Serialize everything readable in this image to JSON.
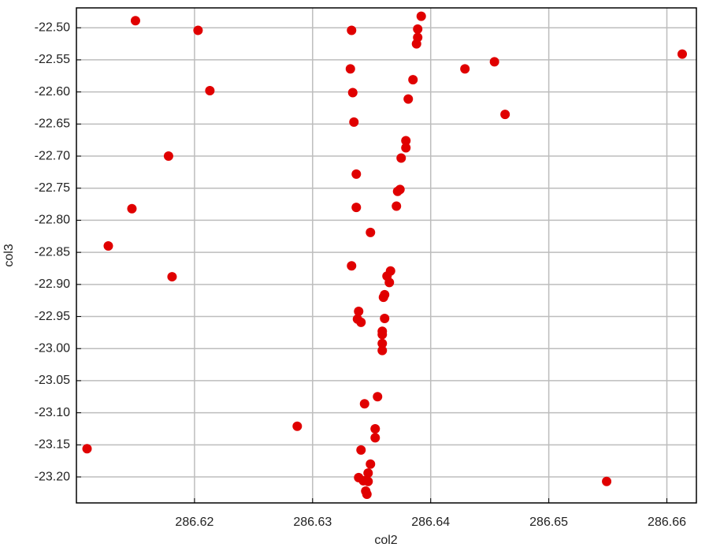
{
  "chart_data": {
    "type": "scatter",
    "x_label": "col2",
    "y_label": "col3",
    "grid": true,
    "series": [
      {
        "color": "#e00000",
        "x": [
          286.615,
          286.6203,
          286.6392,
          286.6389,
          286.6389,
          286.6388,
          286.6333,
          286.6613,
          286.6454,
          286.6429,
          286.6332,
          286.6385,
          286.6213,
          286.6334,
          286.6381,
          286.6463,
          286.6335,
          286.6379,
          286.6379,
          286.6178,
          286.6375,
          286.6337,
          286.6374,
          286.6372,
          286.6147,
          286.6337,
          286.6371,
          286.6349,
          286.6127,
          286.6333,
          286.6366,
          286.6363,
          286.6365,
          286.6181,
          286.6361,
          286.636,
          286.6339,
          286.6338,
          286.6341,
          286.6361,
          286.6359,
          286.6359,
          286.6359,
          286.6359,
          286.6355,
          286.6344,
          286.6287,
          286.6353,
          286.6353,
          286.6109,
          286.6341,
          286.6349,
          286.6347,
          286.6339,
          286.6343,
          286.6347,
          286.6345,
          286.6346,
          286.6549
        ],
        "values": [
          -22.489,
          -22.504,
          -22.482,
          -22.502,
          -22.515,
          -22.525,
          -22.504,
          -22.541,
          -22.553,
          -22.564,
          -22.564,
          -22.581,
          -22.598,
          -22.601,
          -22.611,
          -22.635,
          -22.647,
          -22.676,
          -22.687,
          -22.7,
          -22.703,
          -22.728,
          -22.752,
          -22.755,
          -22.782,
          -22.78,
          -22.778,
          -22.819,
          -22.84,
          -22.871,
          -22.879,
          -22.887,
          -22.897,
          -22.888,
          -22.916,
          -22.92,
          -22.942,
          -22.954,
          -22.959,
          -22.953,
          -22.973,
          -22.978,
          -22.992,
          -23.003,
          -23.075,
          -23.086,
          -23.121,
          -23.125,
          -23.139,
          -23.156,
          -23.158,
          -23.18,
          -23.194,
          -23.201,
          -23.206,
          -23.207,
          -23.222,
          -23.227,
          -23.207
        ]
      }
    ],
    "xlim": [
      286.61,
      286.6625
    ],
    "xticks": [
      286.62,
      286.63,
      286.64,
      286.65,
      286.66
    ],
    "ylim": [
      -23.2405,
      -22.469
    ],
    "yticks": [
      {
        "value": -22.5,
        "label": "-22.50"
      },
      {
        "value": -22.55,
        "label": "-22.55"
      },
      {
        "value": -22.6,
        "label": "-22.60"
      },
      {
        "value": -22.65,
        "label": "-22.65"
      },
      {
        "value": -22.7,
        "label": "-22.70"
      },
      {
        "value": -22.75,
        "label": "-22.75"
      },
      {
        "value": -22.8,
        "label": "-22.80"
      },
      {
        "value": -22.85,
        "label": "-22.85"
      },
      {
        "value": -22.9,
        "label": "-22.90"
      },
      {
        "value": -22.95,
        "label": "-22.95"
      },
      {
        "value": -23.0,
        "label": "-23.00"
      },
      {
        "value": -23.05,
        "label": "-23.05"
      },
      {
        "value": -23.1,
        "label": "-23.10"
      },
      {
        "value": -23.15,
        "label": "-23.15"
      },
      {
        "value": -23.2,
        "label": "-23.20"
      }
    ]
  }
}
